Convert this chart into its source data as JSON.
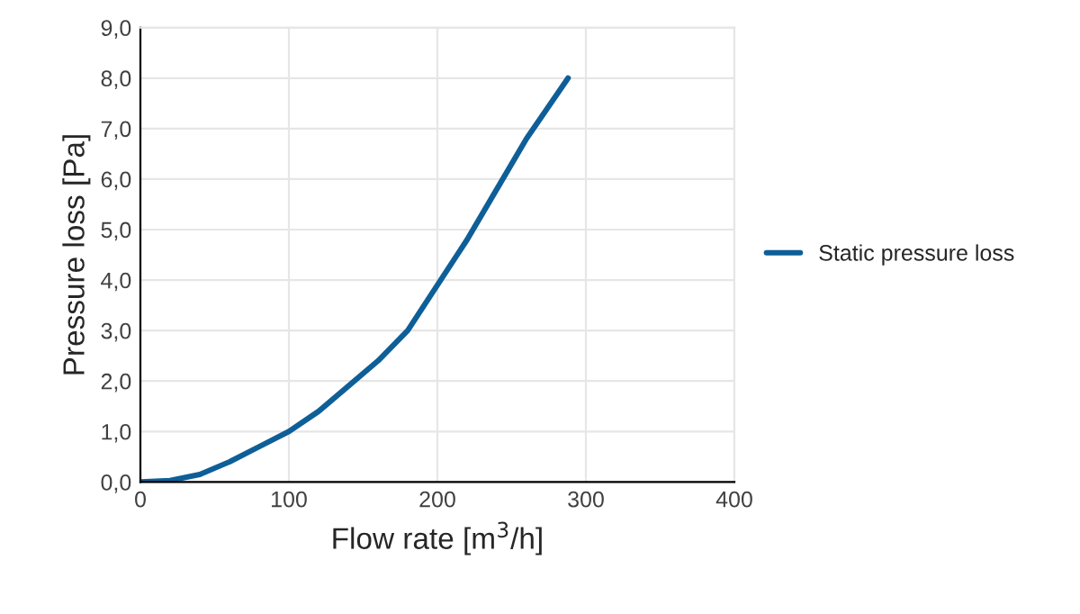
{
  "chart_data": {
    "type": "line",
    "xlabel": "Flow rate [m$^{3}$/h]",
    "ylabel": "Pressure loss [Pa]",
    "series": [
      {
        "name": "Static pressure loss",
        "color": "#0e5f98",
        "x": [
          0,
          20,
          40,
          60,
          80,
          100,
          120,
          140,
          160,
          180,
          200,
          220,
          240,
          260,
          288
        ],
        "values": [
          0,
          0.03,
          0.15,
          0.4,
          0.7,
          1.0,
          1.4,
          1.9,
          2.4,
          3.0,
          3.9,
          4.8,
          5.8,
          6.8,
          8.0
        ]
      }
    ],
    "xlim": [
      0,
      400
    ],
    "xticks": [
      0,
      100,
      200,
      300,
      400
    ],
    "ylim": [
      0,
      9
    ],
    "yticks": [
      {
        "value": 0,
        "label": "0,0"
      },
      {
        "value": 1,
        "label": "1,0"
      },
      {
        "value": 2,
        "label": "2,0"
      },
      {
        "value": 3,
        "label": "3,0"
      },
      {
        "value": 4,
        "label": "4,0"
      },
      {
        "value": 5,
        "label": "5,0"
      },
      {
        "value": 6,
        "label": "6,0"
      },
      {
        "value": 7,
        "label": "7,0"
      },
      {
        "value": 8,
        "label": "8,0"
      },
      {
        "value": 9,
        "label": "9,0"
      }
    ],
    "grid": true,
    "legend": "right",
    "marker": "none",
    "line_style": "solid"
  }
}
